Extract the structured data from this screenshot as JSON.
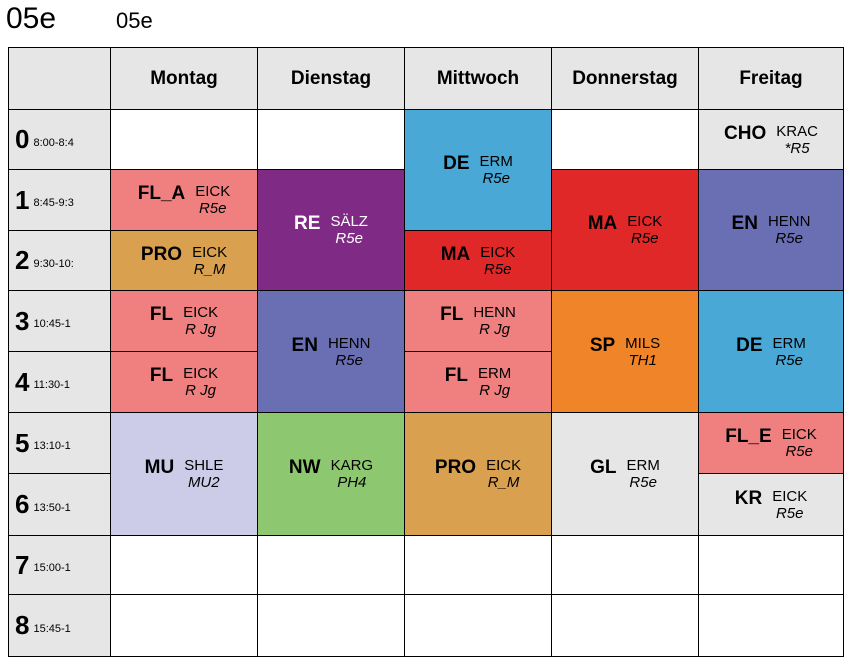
{
  "header": {
    "class_name": "05e",
    "class_name_small": "05e"
  },
  "days": [
    "Montag",
    "Dienstag",
    "Mittwoch",
    "Donnerstag",
    "Freitag"
  ],
  "periods": [
    {
      "num": "0",
      "time": "8:00-8:4"
    },
    {
      "num": "1",
      "time": "8:45-9:3"
    },
    {
      "num": "2",
      "time": "9:30-10:"
    },
    {
      "num": "3",
      "time": "10:45-1"
    },
    {
      "num": "4",
      "time": "11:30-1"
    },
    {
      "num": "5",
      "time": "13:10-1"
    },
    {
      "num": "6",
      "time": "13:50-1"
    },
    {
      "num": "7",
      "time": "15:00-1"
    },
    {
      "num": "8",
      "time": "15:45-1"
    }
  ],
  "lessons": [
    {
      "day": 0,
      "start": 1,
      "span": 1,
      "subject": "FL_A",
      "teacher": "EICK",
      "room": "R5e",
      "color": "#f08080",
      "text_color": "#000000"
    },
    {
      "day": 0,
      "start": 2,
      "span": 1,
      "subject": "PRO",
      "teacher": "EICK",
      "room": "R_M",
      "color": "#d9a050",
      "text_color": "#000000"
    },
    {
      "day": 0,
      "start": 3,
      "span": 1,
      "subject": "FL",
      "teacher": "EICK",
      "room": "R Jg",
      "color": "#f08080",
      "text_color": "#000000"
    },
    {
      "day": 0,
      "start": 4,
      "span": 1,
      "subject": "FL",
      "teacher": "EICK",
      "room": "R Jg",
      "color": "#f08080",
      "text_color": "#000000"
    },
    {
      "day": 0,
      "start": 5,
      "span": 2,
      "subject": "MU",
      "teacher": "SHLE",
      "room": "MU2",
      "color": "#cccce8",
      "text_color": "#000000"
    },
    {
      "day": 1,
      "start": 1,
      "span": 2,
      "subject": "RE",
      "teacher": "SÄLZ",
      "room": "R5e",
      "color": "#7f2a84",
      "text_color": "#ffffff"
    },
    {
      "day": 1,
      "start": 3,
      "span": 2,
      "subject": "EN",
      "teacher": "HENN",
      "room": "R5e",
      "color": "#6a6fb4",
      "text_color": "#000000"
    },
    {
      "day": 1,
      "start": 5,
      "span": 2,
      "subject": "NW",
      "teacher": "KARG",
      "room": "PH4",
      "color": "#8dc870",
      "text_color": "#000000"
    },
    {
      "day": 2,
      "start": 0,
      "span": 2,
      "subject": "DE",
      "teacher": "ERM",
      "room": "R5e",
      "color": "#4aa8d6",
      "text_color": "#000000"
    },
    {
      "day": 2,
      "start": 2,
      "span": 1,
      "subject": "MA",
      "teacher": "EICK",
      "room": "R5e",
      "color": "#e02828",
      "text_color": "#000000"
    },
    {
      "day": 2,
      "start": 3,
      "span": 1,
      "subject": "FL",
      "teacher": "HENN",
      "room": "R Jg",
      "color": "#f08080",
      "text_color": "#000000"
    },
    {
      "day": 2,
      "start": 4,
      "span": 1,
      "subject": "FL",
      "teacher": "ERM",
      "room": "R Jg",
      "color": "#f08080",
      "text_color": "#000000"
    },
    {
      "day": 2,
      "start": 5,
      "span": 2,
      "subject": "PRO",
      "teacher": "EICK",
      "room": "R_M",
      "color": "#d9a050",
      "text_color": "#000000"
    },
    {
      "day": 3,
      "start": 1,
      "span": 2,
      "subject": "MA",
      "teacher": "EICK",
      "room": "R5e",
      "color": "#e02828",
      "text_color": "#000000"
    },
    {
      "day": 3,
      "start": 3,
      "span": 2,
      "subject": "SP",
      "teacher": "MILS",
      "room": "TH1",
      "color": "#f08428",
      "text_color": "#000000"
    },
    {
      "day": 3,
      "start": 5,
      "span": 2,
      "subject": "GL",
      "teacher": "ERM",
      "room": "R5e",
      "color": "#e6e6e6",
      "text_color": "#000000"
    },
    {
      "day": 4,
      "start": 0,
      "span": 1,
      "subject": "CHO",
      "teacher": "KRAC",
      "room": "*R5",
      "color": "#e6e6e6",
      "text_color": "#000000"
    },
    {
      "day": 4,
      "start": 1,
      "span": 2,
      "subject": "EN",
      "teacher": "HENN",
      "room": "R5e",
      "color": "#6a6fb4",
      "text_color": "#000000"
    },
    {
      "day": 4,
      "start": 3,
      "span": 2,
      "subject": "DE",
      "teacher": "ERM",
      "room": "R5e",
      "color": "#4aa8d6",
      "text_color": "#000000"
    },
    {
      "day": 4,
      "start": 5,
      "span": 1,
      "subject": "FL_E",
      "teacher": "EICK",
      "room": "R5e",
      "color": "#f08080",
      "text_color": "#000000"
    },
    {
      "day": 4,
      "start": 6,
      "span": 1,
      "subject": "KR",
      "teacher": "EICK",
      "room": "R5e",
      "color": "#e6e6e6",
      "text_color": "#000000"
    }
  ]
}
